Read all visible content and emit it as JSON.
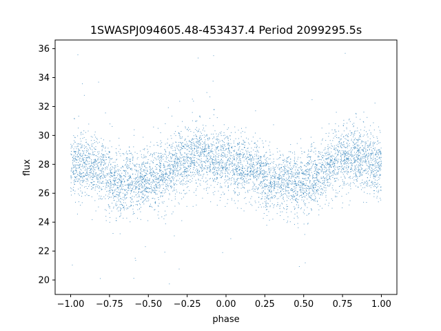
{
  "chart_data": {
    "type": "scatter",
    "title": "1SWASPJ094605.48-453437.4 Period 2099295.5s",
    "xlabel": "phase",
    "ylabel": "flux",
    "xlim": [
      -1.1,
      1.1
    ],
    "ylim": [
      19.0,
      36.6
    ],
    "xticks": [
      -1.0,
      -0.75,
      -0.5,
      -0.25,
      0.0,
      0.25,
      0.5,
      0.75,
      1.0
    ],
    "xtick_labels": [
      "−1.00",
      "−0.75",
      "−0.50",
      "−0.25",
      "0.00",
      "0.25",
      "0.50",
      "0.75",
      "1.00"
    ],
    "yticks": [
      20,
      22,
      24,
      26,
      28,
      30,
      32,
      34,
      36
    ],
    "ytick_labels": [
      "20",
      "22",
      "24",
      "26",
      "28",
      "30",
      "32",
      "34",
      "36"
    ],
    "grid": false,
    "legend": "none",
    "point_color": "#1f77b4",
    "x_range": [
      -1.0,
      1.0
    ],
    "mean_flux_profile": {
      "phase": [
        -1.0,
        -0.9,
        -0.8,
        -0.7,
        -0.6,
        -0.5,
        -0.4,
        -0.3,
        -0.2,
        -0.1,
        0.0,
        0.1,
        0.2,
        0.3,
        0.4,
        0.5,
        0.6,
        0.7,
        0.8,
        0.9,
        1.0
      ],
      "flux": [
        27.9,
        28.0,
        27.6,
        26.6,
        26.9,
        26.8,
        27.3,
        28.1,
        28.7,
        28.4,
        28.1,
        27.9,
        27.6,
        26.6,
        26.9,
        26.8,
        27.3,
        28.1,
        28.7,
        28.4,
        27.9
      ]
    }
  }
}
